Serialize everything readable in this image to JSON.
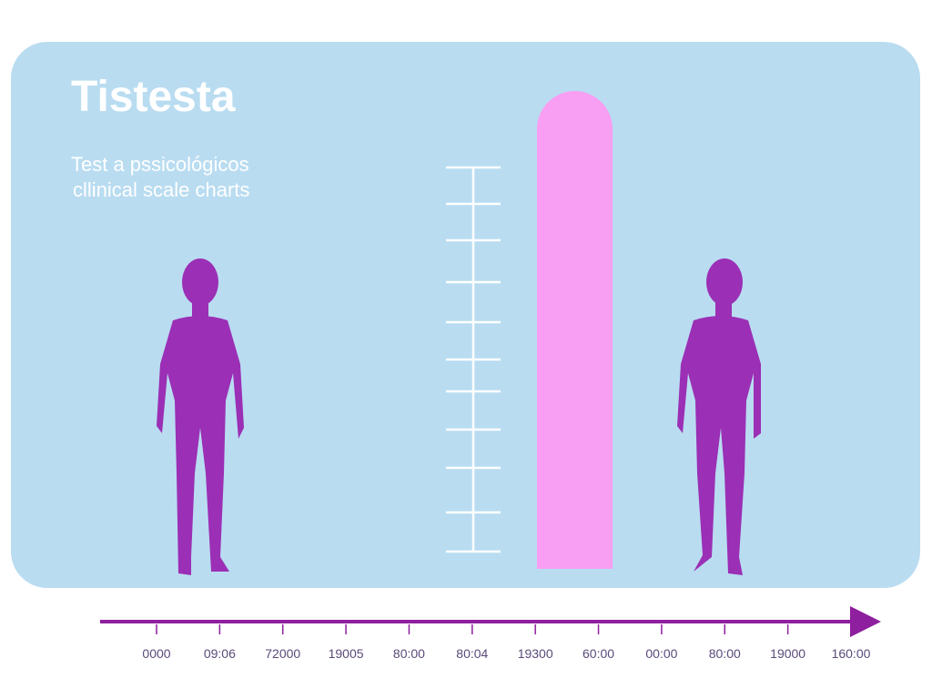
{
  "header": {
    "title": "Tistesta",
    "subtitle": [
      "Test a pssicológicos",
      "cllinical scale charts"
    ]
  },
  "timeline": {
    "labels": [
      "0000",
      "09:06",
      "72000",
      "19005",
      "80:00",
      "80:04",
      "19300",
      "60:00",
      "00:00",
      "80:00",
      "19000",
      "160:00"
    ]
  }
}
